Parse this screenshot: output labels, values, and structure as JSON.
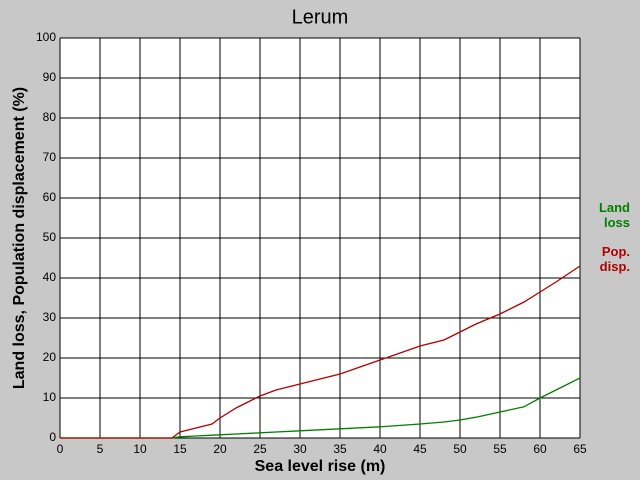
{
  "chart_data": {
    "type": "line",
    "title": "Lerum",
    "x_label": "Sea level rise (m)",
    "y_label": "Land loss, Population displacement (%)",
    "x": [
      0,
      5,
      10,
      14,
      15,
      17,
      19,
      20,
      22,
      25,
      27,
      30,
      35,
      40,
      45,
      48,
      50,
      52,
      55,
      58,
      60,
      62,
      65
    ],
    "series": [
      {
        "name": "Land loss",
        "color": "#008000",
        "values": [
          0,
          0,
          0,
          0,
          0.3,
          0.5,
          0.7,
          0.8,
          1.0,
          1.3,
          1.5,
          1.8,
          2.3,
          2.8,
          3.5,
          4,
          4.5,
          5.2,
          6.5,
          7.8,
          10,
          12,
          15
        ]
      },
      {
        "name": "Pop. disp.",
        "color": "#b00000",
        "values": [
          0,
          0,
          0,
          0,
          1.5,
          2.5,
          3.5,
          5,
          7.5,
          10.5,
          12,
          13.5,
          16,
          19.5,
          23,
          24.5,
          26.5,
          28.5,
          31,
          34,
          36.5,
          39,
          43
        ]
      }
    ],
    "xlim": [
      0,
      65
    ],
    "xticks": [
      0,
      5,
      10,
      15,
      20,
      25,
      30,
      35,
      40,
      45,
      50,
      55,
      60,
      65
    ],
    "ylim": [
      0,
      100
    ],
    "yticks": [
      0,
      10,
      20,
      30,
      40,
      50,
      60,
      70,
      80,
      90,
      100
    ],
    "grid": true
  }
}
